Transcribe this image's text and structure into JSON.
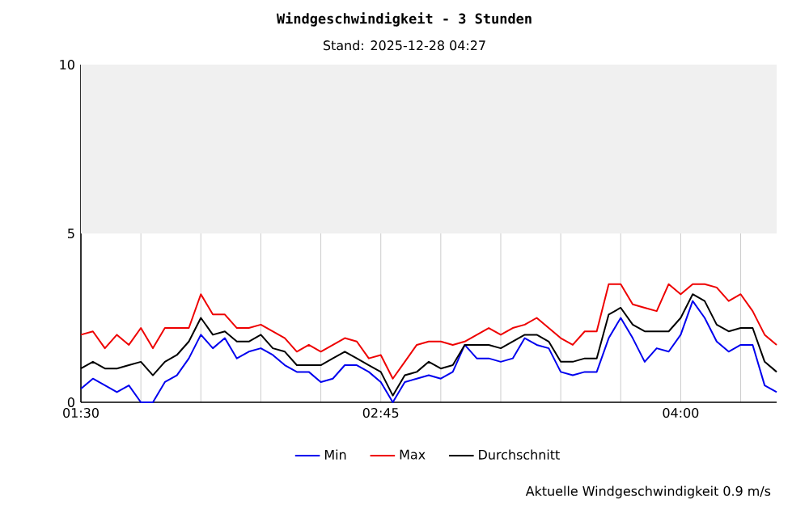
{
  "chart_data": {
    "type": "line",
    "title": "Windgeschwindigkeit - 3 Stunden",
    "subtitle": "Stand: 2025-12-28 04:27",
    "x": [
      1.5,
      1.55,
      1.6,
      1.65,
      1.7,
      1.75,
      1.8,
      1.85,
      1.9,
      1.95,
      2.0,
      2.05,
      2.1,
      2.15,
      2.2,
      2.25,
      2.3,
      2.35,
      2.4,
      2.45,
      2.5,
      2.55,
      2.6,
      2.65,
      2.7,
      2.75,
      2.8,
      2.85,
      2.9,
      2.95,
      3.0,
      3.05,
      3.1,
      3.15,
      3.2,
      3.25,
      3.3,
      3.35,
      3.4,
      3.45,
      3.5,
      3.55,
      3.6,
      3.65,
      3.7,
      3.75,
      3.8,
      3.85,
      3.9,
      3.95,
      4.0,
      4.05,
      4.1,
      4.15,
      4.2,
      4.25,
      4.3,
      4.35,
      4.4
    ],
    "series": [
      {
        "name": "Min",
        "color": "#0000ee",
        "values": [
          0.4,
          0.7,
          0.5,
          0.3,
          0.5,
          0,
          0,
          0.6,
          0.8,
          1.3,
          2.0,
          1.6,
          1.9,
          1.3,
          1.5,
          1.6,
          1.4,
          1.1,
          0.9,
          0.9,
          0.6,
          0.7,
          1.1,
          1.1,
          0.9,
          0.6,
          0,
          0.6,
          0.7,
          0.8,
          0.7,
          0.9,
          1.7,
          1.3,
          1.3,
          1.2,
          1.3,
          1.9,
          1.7,
          1.6,
          0.9,
          0.8,
          0.9,
          0.9,
          1.9,
          2.5,
          1.9,
          1.2,
          1.6,
          1.5,
          2.0,
          3.0,
          2.5,
          1.8,
          1.5,
          1.7,
          1.7,
          0.5,
          0.3
        ]
      },
      {
        "name": "Max",
        "color": "#ee0000",
        "values": [
          2.0,
          2.1,
          1.6,
          2.0,
          1.7,
          2.2,
          1.6,
          2.2,
          2.2,
          2.2,
          3.2,
          2.6,
          2.6,
          2.2,
          2.2,
          2.3,
          2.1,
          1.9,
          1.5,
          1.7,
          1.5,
          1.7,
          1.9,
          1.8,
          1.3,
          1.4,
          0.7,
          1.2,
          1.7,
          1.8,
          1.8,
          1.7,
          1.8,
          2.0,
          2.2,
          2.0,
          2.2,
          2.3,
          2.5,
          2.2,
          1.9,
          1.7,
          2.1,
          2.1,
          3.5,
          3.5,
          2.9,
          2.8,
          2.7,
          3.5,
          3.2,
          3.5,
          3.5,
          3.4,
          3.0,
          3.2,
          2.7,
          2.0,
          1.7
        ]
      },
      {
        "name": "Durchschnitt",
        "color": "#000000",
        "values": [
          1.0,
          1.2,
          1.0,
          1.0,
          1.1,
          1.2,
          0.8,
          1.2,
          1.4,
          1.8,
          2.5,
          2.0,
          2.1,
          1.8,
          1.8,
          2.0,
          1.6,
          1.5,
          1.1,
          1.1,
          1.1,
          1.3,
          1.5,
          1.3,
          1.1,
          0.9,
          0.2,
          0.8,
          0.9,
          1.2,
          1.0,
          1.1,
          1.7,
          1.7,
          1.7,
          1.6,
          1.8,
          2.0,
          2.0,
          1.8,
          1.2,
          1.2,
          1.3,
          1.3,
          2.6,
          2.8,
          2.3,
          2.1,
          2.1,
          2.1,
          2.5,
          3.2,
          3.0,
          2.3,
          2.1,
          2.2,
          2.2,
          1.2,
          0.9
        ]
      }
    ],
    "xlim": [
      1.5,
      4.4
    ],
    "ylim": [
      0,
      10
    ],
    "xticks": [
      {
        "value": 1.5,
        "label": "01:30"
      },
      {
        "value": 1.75,
        "label": null
      },
      {
        "value": 2.0,
        "label": null
      },
      {
        "value": 2.25,
        "label": null
      },
      {
        "value": 2.5,
        "label": null
      },
      {
        "value": 2.75,
        "label": "02:45"
      },
      {
        "value": 3.0,
        "label": null
      },
      {
        "value": 3.25,
        "label": null
      },
      {
        "value": 3.5,
        "label": null
      },
      {
        "value": 3.75,
        "label": null
      },
      {
        "value": 4.0,
        "label": "04:00"
      },
      {
        "value": 4.25,
        "label": null
      }
    ],
    "yticks": [
      0,
      5,
      10
    ],
    "bands": [
      {
        "axis": "y",
        "from": 5,
        "to": 10,
        "color": "#f0f0f0"
      }
    ],
    "grid": "x",
    "legend": "bottom",
    "marker": "none",
    "line_style": "solid",
    "annotations": [
      "Aktuelle Windgeschwindigkeit 0.9 m/s"
    ]
  }
}
